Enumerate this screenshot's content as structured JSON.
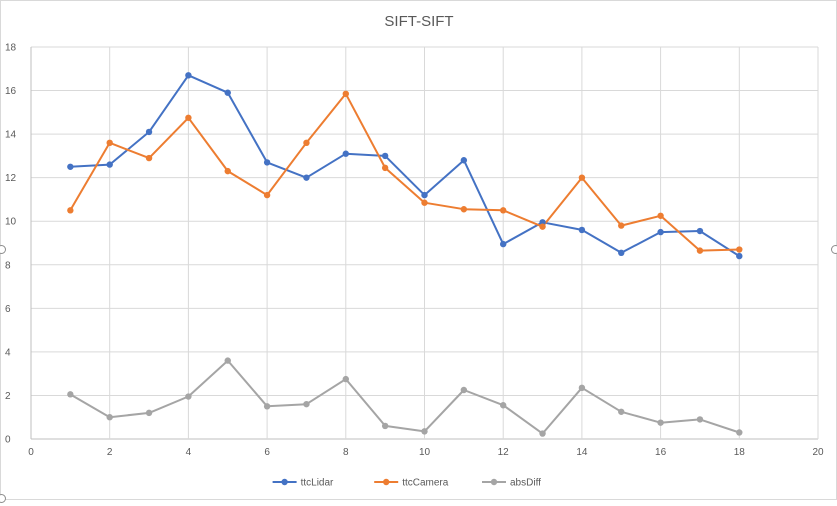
{
  "chart_data": {
    "type": "line",
    "title": "SIFT-SIFT",
    "xlabel": "",
    "ylabel": "",
    "xlim": [
      0,
      20
    ],
    "ylim": [
      0,
      18
    ],
    "xticks": [
      0,
      2,
      4,
      6,
      8,
      10,
      12,
      14,
      16,
      18,
      20
    ],
    "yticks": [
      0,
      2,
      4,
      6,
      8,
      10,
      12,
      14,
      16,
      18
    ],
    "grid": true,
    "legend": "bottom-center",
    "x": [
      1,
      2,
      3,
      4,
      5,
      6,
      7,
      8,
      9,
      10,
      11,
      12,
      13,
      14,
      15,
      16,
      17,
      18
    ],
    "series": [
      {
        "name": "ttcLidar",
        "color": "#4472c4",
        "values": [
          12.5,
          12.6,
          14.1,
          16.7,
          15.9,
          12.7,
          12.0,
          13.1,
          13.0,
          11.2,
          12.8,
          8.95,
          9.95,
          9.6,
          8.55,
          9.5,
          9.55,
          8.4
        ]
      },
      {
        "name": "ttcCamera",
        "color": "#ed7d31",
        "values": [
          10.5,
          13.6,
          12.9,
          14.75,
          12.3,
          11.2,
          13.6,
          15.85,
          12.45,
          10.85,
          10.55,
          10.5,
          9.75,
          12.0,
          9.8,
          10.25,
          8.65,
          8.7
        ]
      },
      {
        "name": "absDiff",
        "color": "#a5a5a5",
        "values": [
          2.05,
          1.0,
          1.2,
          1.95,
          3.6,
          1.5,
          1.6,
          2.75,
          0.6,
          0.35,
          2.25,
          1.55,
          0.25,
          2.35,
          1.25,
          0.75,
          0.9,
          0.3
        ]
      }
    ]
  }
}
